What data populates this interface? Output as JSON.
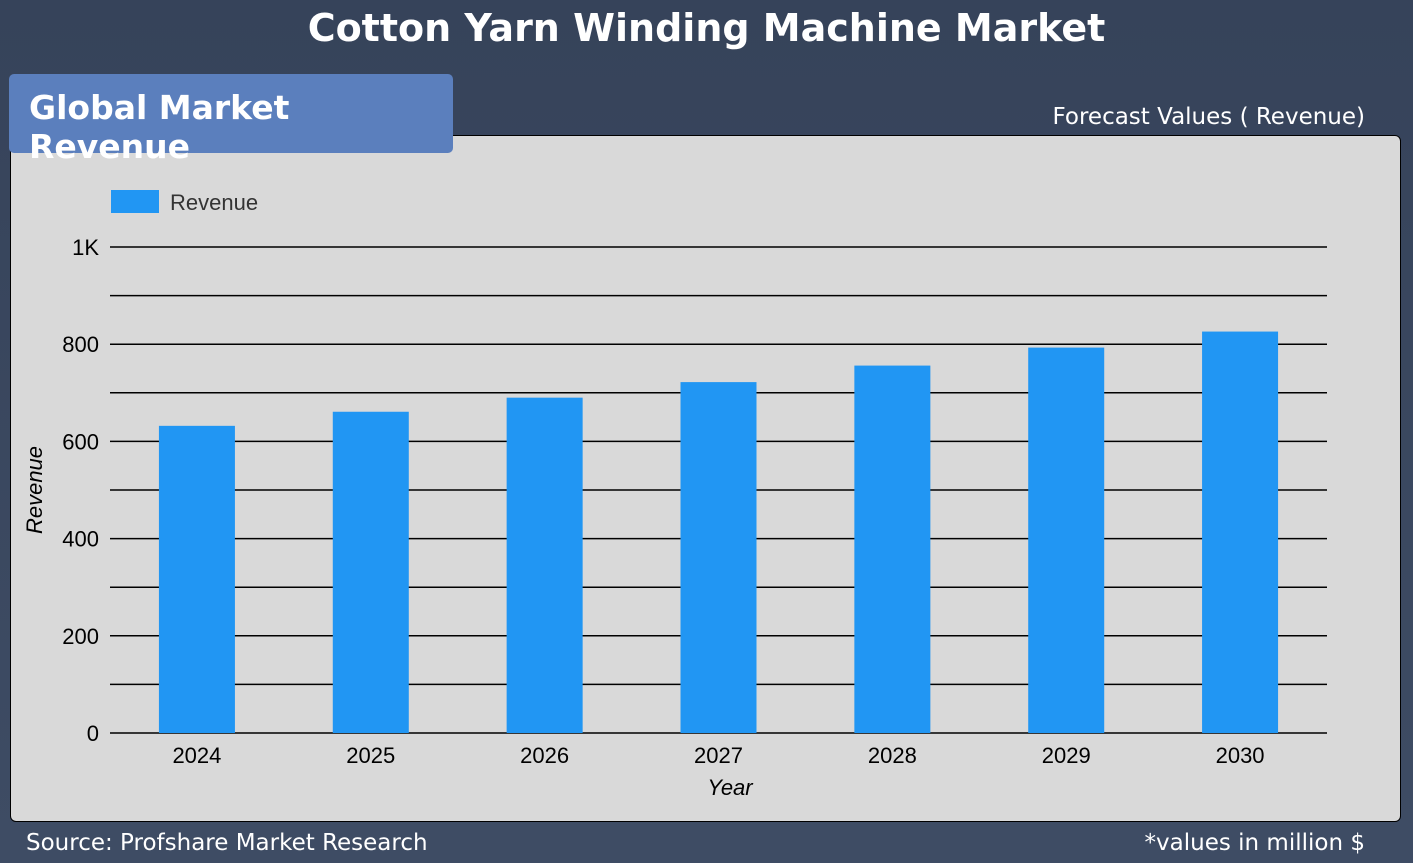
{
  "header": {
    "title": "Cotton Yarn Winding Machine Market",
    "section_tag": "Global Market Revenue",
    "forecast_label": "Forecast Values ( Revenue)"
  },
  "footer": {
    "source": "Source: Profshare Market Research",
    "unit_note": "*values in million $"
  },
  "chart_data": {
    "type": "bar",
    "title": "",
    "xlabel": "Year",
    "ylabel": "Revenue",
    "categories": [
      "2024",
      "2025",
      "2026",
      "2027",
      "2028",
      "2029",
      "2030"
    ],
    "series": [
      {
        "name": "Revenue",
        "values": [
          632,
          661,
          690,
          722,
          756,
          793,
          826
        ],
        "color": "#2196f3"
      }
    ],
    "ylim": [
      0,
      1000
    ],
    "yticks": [
      {
        "value": 0,
        "label": "0"
      },
      {
        "value": 200,
        "label": "200"
      },
      {
        "value": 400,
        "label": "400"
      },
      {
        "value": 600,
        "label": "600"
      },
      {
        "value": 800,
        "label": "800"
      },
      {
        "value": 1000,
        "label": "1K"
      }
    ],
    "grid": true,
    "legend": "top-left"
  }
}
